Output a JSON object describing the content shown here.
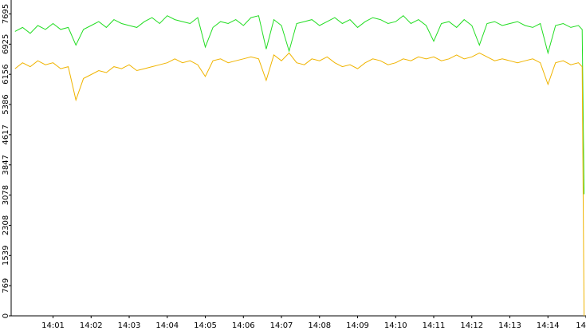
{
  "chart_data": {
    "type": "line",
    "x": [
      0,
      0.2,
      0.4,
      0.6,
      0.8,
      1,
      1.2,
      1.4,
      1.6,
      1.8,
      2,
      2.2,
      2.4,
      2.6,
      2.8,
      3,
      3.2,
      3.4,
      3.6,
      3.8,
      4,
      4.2,
      4.4,
      4.6,
      4.8,
      5,
      5.2,
      5.4,
      5.6,
      5.8,
      6,
      6.2,
      6.4,
      6.6,
      6.8,
      7,
      7.2,
      7.4,
      7.6,
      7.8,
      8,
      8.2,
      8.4,
      8.6,
      8.8,
      9,
      9.2,
      9.4,
      9.6,
      9.8,
      10,
      10.2,
      10.4,
      10.6,
      10.8,
      11,
      11.2,
      11.4,
      11.6,
      11.8,
      12,
      12.2,
      12.4,
      12.6,
      12.8,
      13,
      13.2,
      13.4,
      13.6,
      13.8,
      14,
      14.2,
      14.4,
      14.6,
      14.8,
      14.9,
      14.95
    ],
    "series": [
      {
        "color": "#22dd22",
        "values": [
          7250,
          7350,
          7200,
          7400,
          7300,
          7450,
          7300,
          7350,
          6900,
          7300,
          7400,
          7500,
          7350,
          7550,
          7450,
          7400,
          7350,
          7500,
          7600,
          7450,
          7650,
          7550,
          7500,
          7450,
          7600,
          6850,
          7350,
          7500,
          7450,
          7550,
          7400,
          7600,
          7650,
          6800,
          7550,
          7400,
          6750,
          7450,
          7500,
          7550,
          7400,
          7500,
          7600,
          7450,
          7550,
          7350,
          7500,
          7600,
          7550,
          7450,
          7500,
          7650,
          7450,
          7550,
          7400,
          7000,
          7450,
          7500,
          7350,
          7550,
          7400,
          6900,
          7450,
          7500,
          7400,
          7450,
          7500,
          7400,
          7350,
          7450,
          6700,
          7400,
          7450,
          7350,
          7400,
          7300,
          3100
        ]
      },
      {
        "color": "#f0b400",
        "values": [
          6300,
          6450,
          6350,
          6500,
          6400,
          6450,
          6300,
          6350,
          5500,
          6050,
          6150,
          6250,
          6200,
          6350,
          6300,
          6400,
          6250,
          6300,
          6350,
          6400,
          6450,
          6550,
          6450,
          6500,
          6400,
          6100,
          6500,
          6550,
          6450,
          6500,
          6550,
          6600,
          6550,
          6000,
          6650,
          6500,
          6700,
          6450,
          6400,
          6550,
          6500,
          6600,
          6450,
          6350,
          6400,
          6300,
          6450,
          6550,
          6500,
          6400,
          6450,
          6550,
          6500,
          6600,
          6550,
          6600,
          6500,
          6550,
          6650,
          6550,
          6600,
          6700,
          6600,
          6500,
          6550,
          6500,
          6450,
          6500,
          6550,
          6450,
          5900,
          6450,
          6500,
          6400,
          6450,
          6350,
          0
        ]
      }
    ],
    "xlim": [
      -0.1,
      15.0
    ],
    "ylim": [
      0,
      8050
    ],
    "xticks": [
      {
        "value": 1,
        "label": "14:01"
      },
      {
        "value": 2,
        "label": "14:02"
      },
      {
        "value": 3,
        "label": "14:03"
      },
      {
        "value": 4,
        "label": "14:04"
      },
      {
        "value": 5,
        "label": "14:05"
      },
      {
        "value": 6,
        "label": "14:06"
      },
      {
        "value": 7,
        "label": "14:07"
      },
      {
        "value": 8,
        "label": "14:08"
      },
      {
        "value": 9,
        "label": "14:09"
      },
      {
        "value": 10,
        "label": "14:10"
      },
      {
        "value": 11,
        "label": "14:11"
      },
      {
        "value": 12,
        "label": "14:12"
      },
      {
        "value": 13,
        "label": "14:13"
      },
      {
        "value": 14,
        "label": "14:14"
      },
      {
        "value": 15,
        "label": "14"
      }
    ],
    "yticks": [
      0,
      769,
      1539,
      2308,
      3078,
      3847,
      4617,
      5386,
      6156,
      6925,
      7695
    ]
  }
}
